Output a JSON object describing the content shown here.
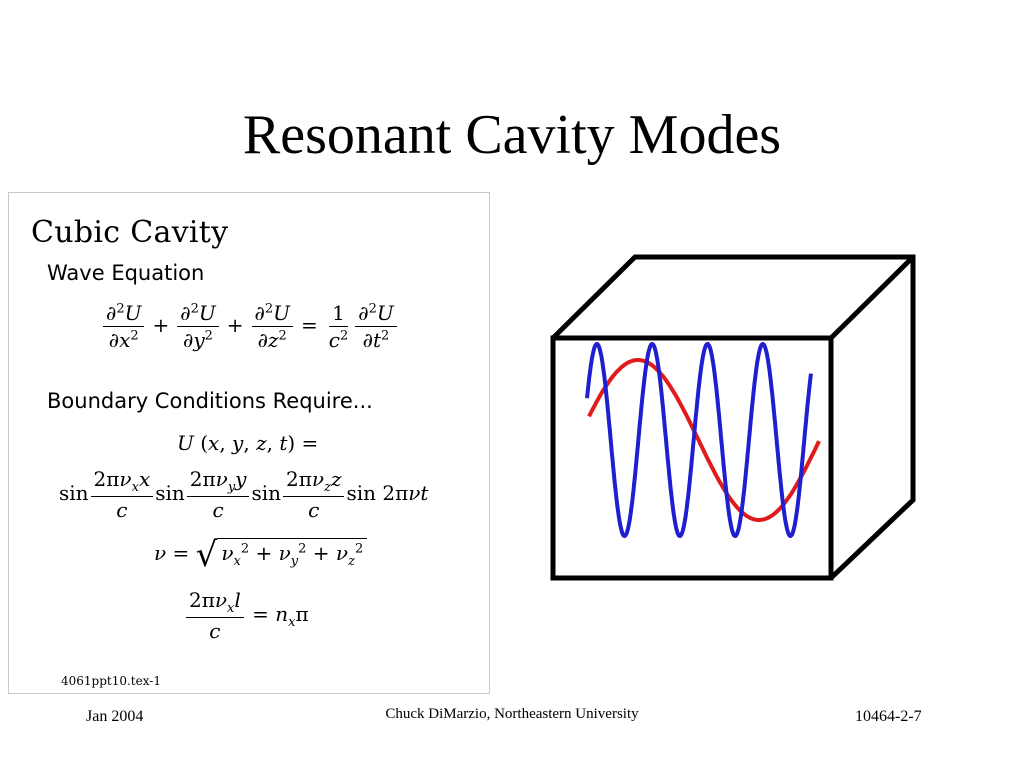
{
  "slide": {
    "title": "Resonant Cavity Modes"
  },
  "panel": {
    "heading": "Cubic Cavity",
    "wave_equation_label": "Wave Equation",
    "boundary_label": "Boundary Conditions Require...",
    "file_tag": "4061ppt10.tex-1"
  },
  "footer": {
    "date": "Jan 2004",
    "author": "Chuck DiMarzio, Northeastern University",
    "slide_number": "10464-2-7"
  },
  "figure": {
    "box_color": "#000000",
    "low_mode_color": "#e01b1b",
    "high_mode_color": "#1f1fd0"
  }
}
